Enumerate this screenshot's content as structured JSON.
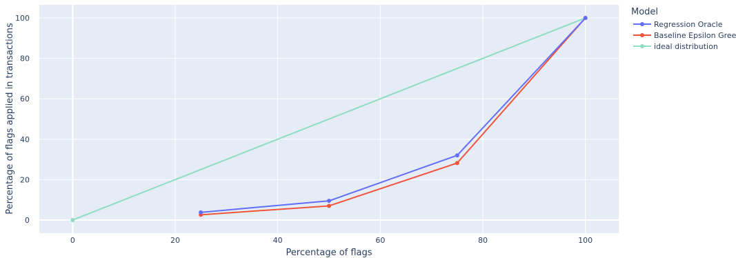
{
  "chart_data": {
    "type": "line",
    "xlabel": "Percentage of flags",
    "ylabel": "Percentage of flags applied in transactions",
    "xlim": [
      -6.5,
      106.5
    ],
    "ylim": [
      -6.5,
      106.5
    ],
    "xticks": [
      0,
      20,
      40,
      60,
      80,
      100
    ],
    "yticks": [
      0,
      20,
      40,
      60,
      80,
      100
    ],
    "grid": true,
    "legend_title": "Model",
    "legend_position": "right",
    "series": [
      {
        "name": "Regression Oracle",
        "color": "#636efa",
        "x": [
          25,
          50,
          75,
          100
        ],
        "y": [
          3.8,
          9.5,
          32,
          100
        ]
      },
      {
        "name": "Baseline Epsilon Greedy",
        "color": "#ef553b",
        "x": [
          25,
          50,
          75,
          100
        ],
        "y": [
          2.6,
          7.0,
          28.2,
          100
        ]
      },
      {
        "name": "ideal distribution",
        "color": "#8fdcc3",
        "x": [
          0,
          100
        ],
        "y": [
          0,
          100
        ]
      }
    ]
  }
}
